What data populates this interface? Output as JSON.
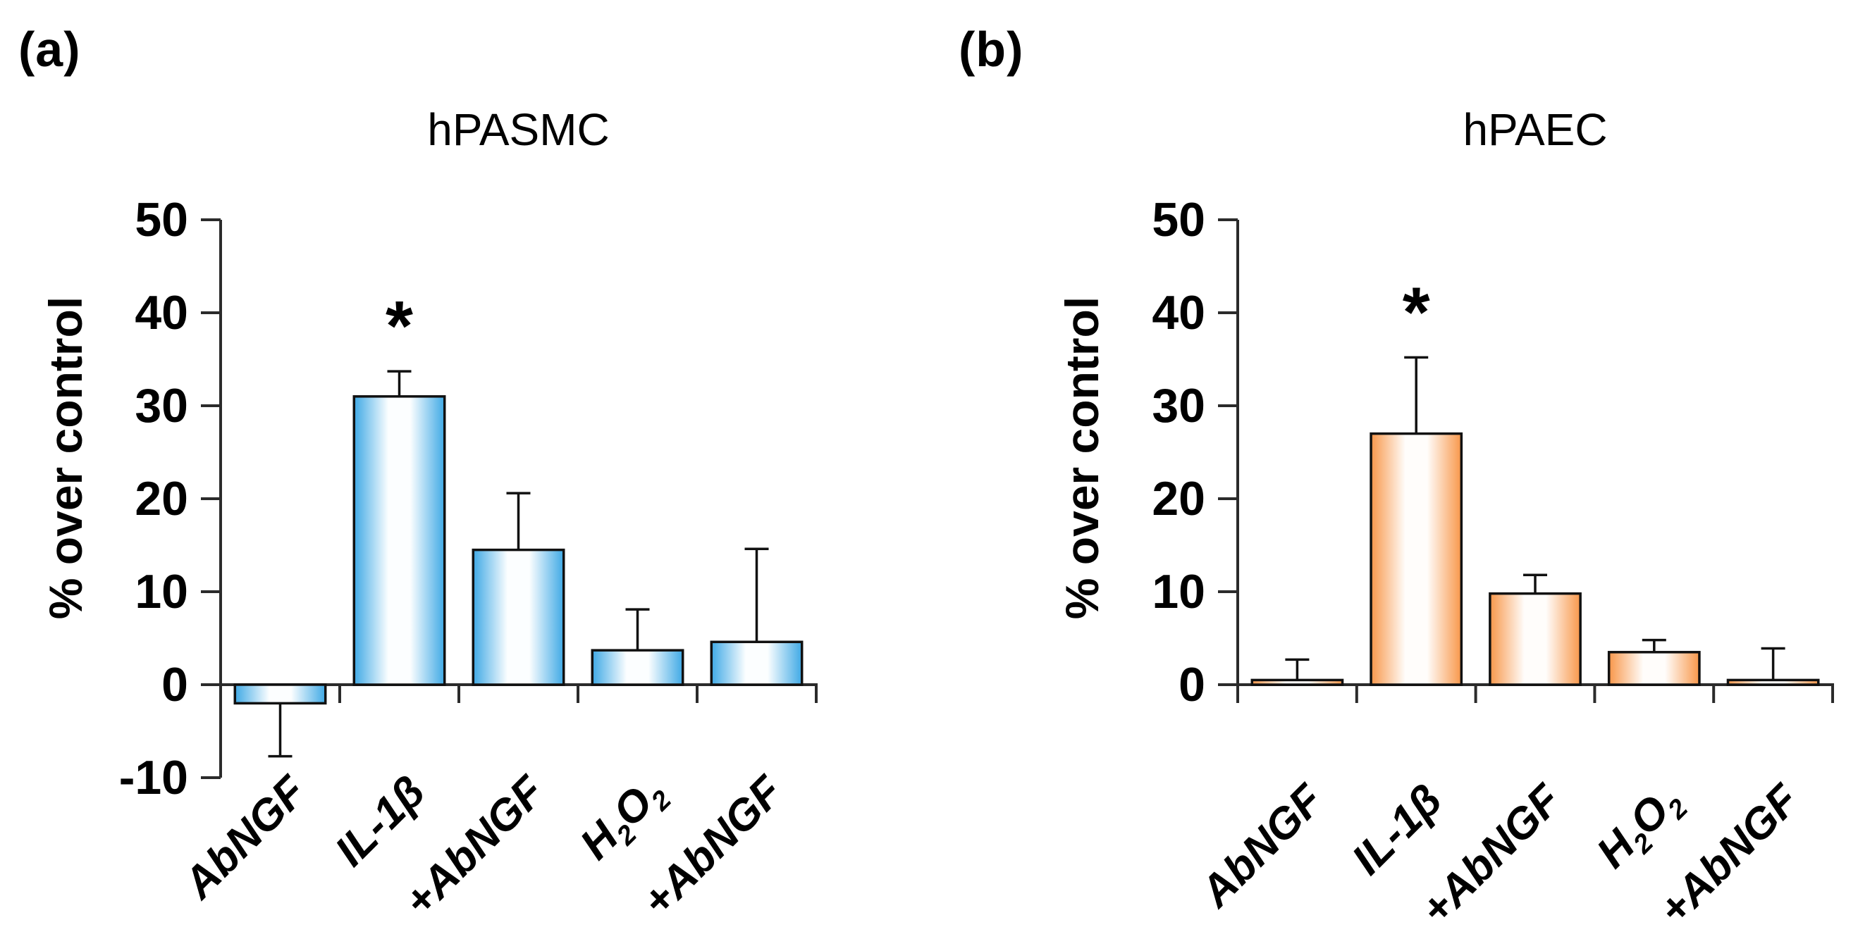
{
  "figure": {
    "panel_labels": [
      "(a)",
      "(b)"
    ],
    "background": "#ffffff"
  },
  "chart_data": [
    {
      "id": "a",
      "type": "bar",
      "title": "hPASMC",
      "ylabel": "% over control",
      "ylim": [
        -10,
        50
      ],
      "yticks": [
        -10,
        0,
        10,
        20,
        30,
        40,
        50
      ],
      "grid": false,
      "legend": null,
      "categories": [
        "AbNGF",
        "IL-1β",
        "+AbNGF",
        "H₂O₂",
        "+AbNGF"
      ],
      "values": [
        -2,
        31,
        14.5,
        3.7,
        4.6
      ],
      "errors": [
        5.7,
        2.7,
        6.1,
        4.4,
        10.0
      ],
      "significance": [
        "",
        "*",
        "",
        "",
        ""
      ],
      "bar_edge_color": "#3FA9E5",
      "bar_center_color": "#FCFEFF",
      "bar_outline_color": "#111111",
      "axis_color": "#2b2b2b"
    },
    {
      "id": "b",
      "type": "bar",
      "title": "hPAEC",
      "ylabel": "% over control",
      "ylim": [
        0,
        50
      ],
      "yticks": [
        0,
        10,
        20,
        30,
        40,
        50
      ],
      "grid": false,
      "legend": null,
      "categories": [
        "AbNGF",
        "IL-1β",
        "+AbNGF",
        "H₂O₂",
        "+AbNGF"
      ],
      "values": [
        0.5,
        27,
        9.8,
        3.5,
        0.5
      ],
      "errors": [
        2.2,
        8.2,
        2.0,
        1.3,
        3.4
      ],
      "significance": [
        "",
        "*",
        "",
        "",
        ""
      ],
      "bar_edge_color": "#F8974A",
      "bar_center_color": "#FFFDFB",
      "bar_outline_color": "#111111",
      "axis_color": "#2b2b2b"
    }
  ]
}
